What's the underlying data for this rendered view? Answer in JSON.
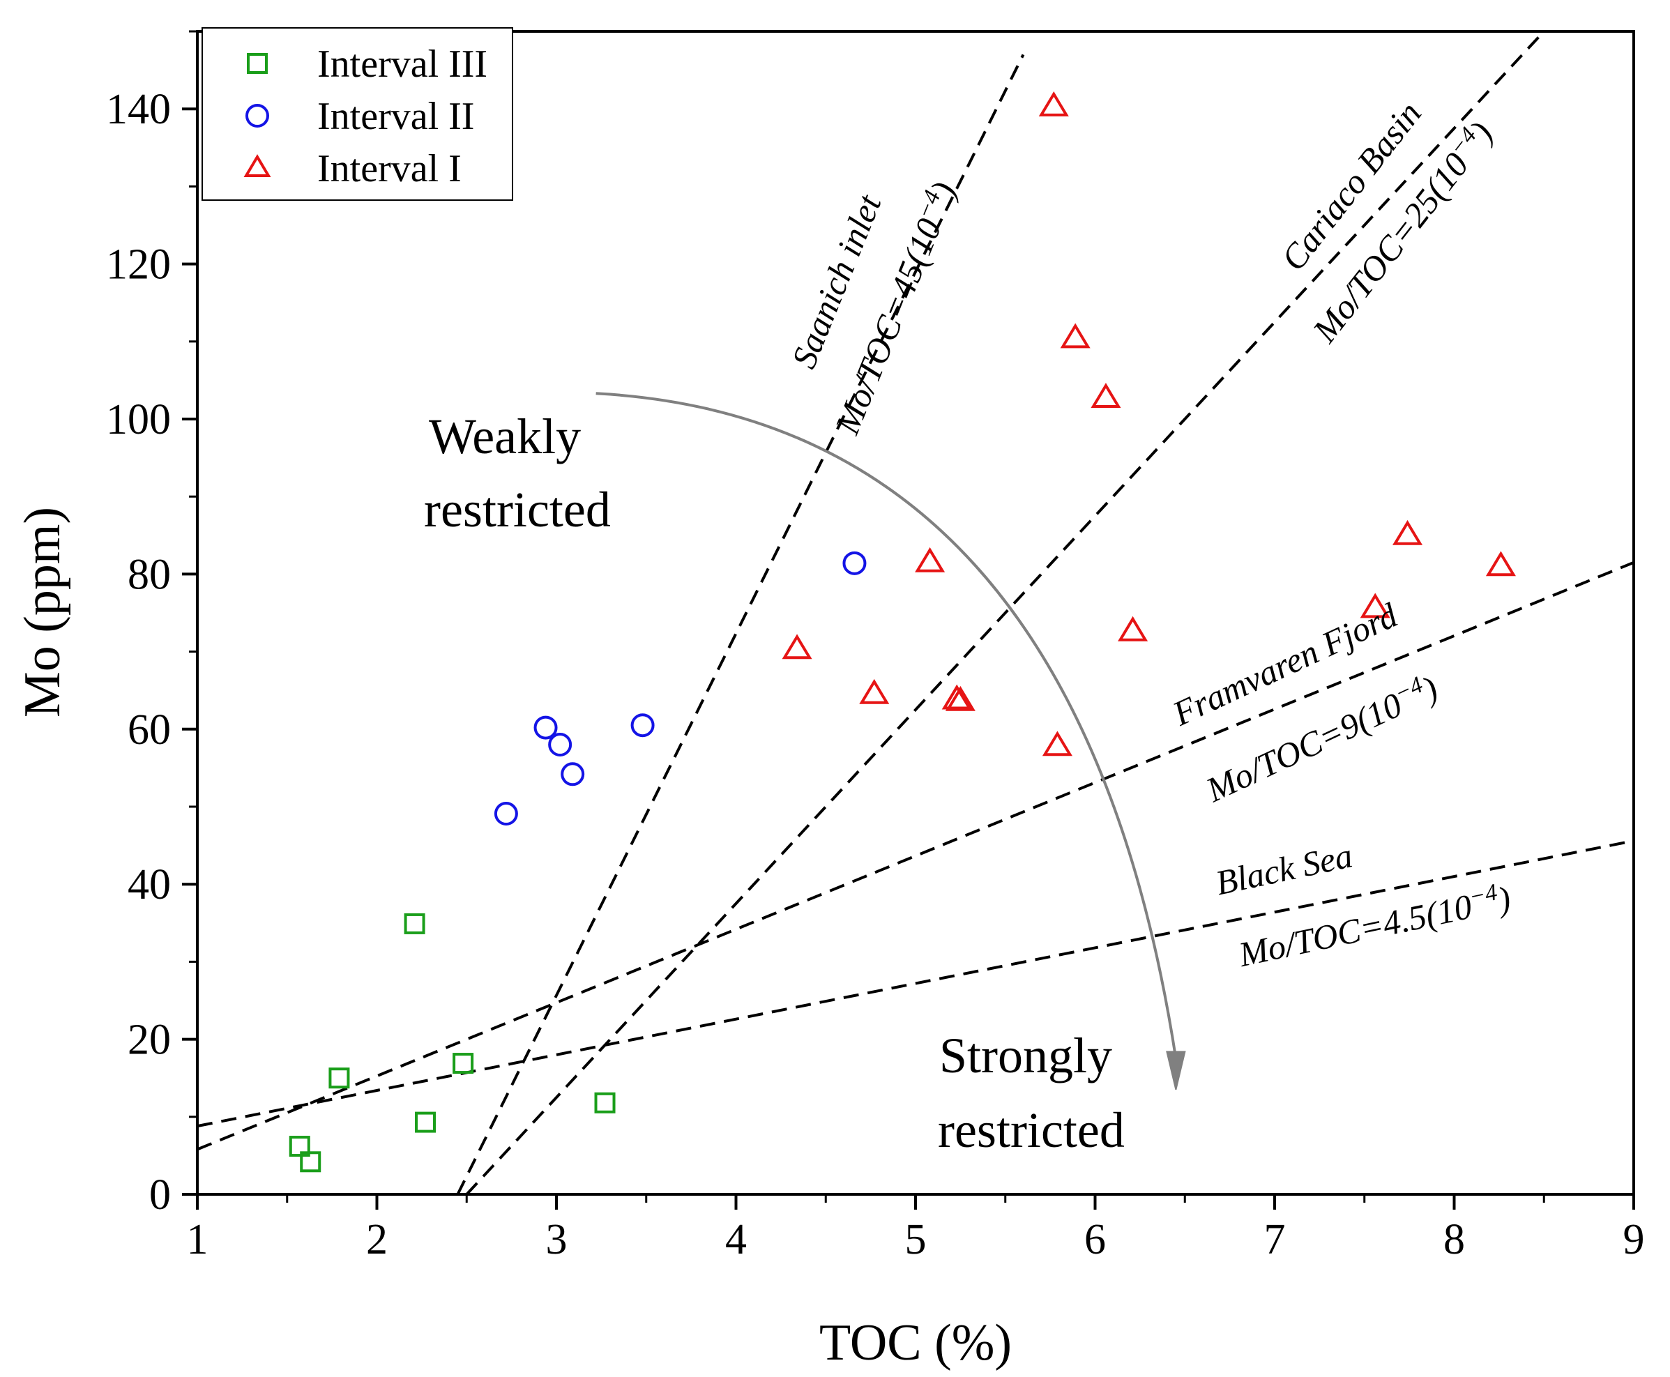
{
  "chart_data": {
    "type": "scatter",
    "xlabel": "TOC (%)",
    "ylabel": "Mo (ppm)",
    "xlim": [
      1,
      9
    ],
    "ylim": [
      0,
      150
    ],
    "xticks": [
      1,
      2,
      3,
      4,
      5,
      6,
      7,
      8,
      9
    ],
    "yticks": [
      0,
      20,
      40,
      60,
      80,
      100,
      120,
      140
    ],
    "x_tick_labels": [
      "1",
      "2",
      "3",
      "4",
      "5",
      "6",
      "7",
      "8",
      "9"
    ],
    "y_tick_labels": [
      "0",
      "20",
      "40",
      "60",
      "80",
      "100",
      "120",
      "140"
    ],
    "legend_position": "top-left",
    "series": [
      {
        "name": "Interval III",
        "marker": "square",
        "color": "#1a9e1a",
        "points": [
          {
            "x": 1.57,
            "y": 6.2
          },
          {
            "x": 1.63,
            "y": 4.2
          },
          {
            "x": 1.79,
            "y": 15.0
          },
          {
            "x": 2.21,
            "y": 34.9
          },
          {
            "x": 2.27,
            "y": 9.3
          },
          {
            "x": 2.48,
            "y": 16.9
          },
          {
            "x": 3.27,
            "y": 11.8
          }
        ]
      },
      {
        "name": "Interval II",
        "marker": "circle",
        "color": "#1414e6",
        "points": [
          {
            "x": 2.72,
            "y": 49.1
          },
          {
            "x": 2.94,
            "y": 60.2
          },
          {
            "x": 3.02,
            "y": 58.0
          },
          {
            "x": 3.09,
            "y": 54.2
          },
          {
            "x": 3.48,
            "y": 60.5
          },
          {
            "x": 4.66,
            "y": 81.4
          }
        ]
      },
      {
        "name": "Interval I",
        "marker": "triangle",
        "color": "#e61414",
        "points": [
          {
            "x": 4.34,
            "y": 70.3
          },
          {
            "x": 4.77,
            "y": 64.5
          },
          {
            "x": 5.08,
            "y": 81.5
          },
          {
            "x": 5.23,
            "y": 63.8
          },
          {
            "x": 5.25,
            "y": 63.6
          },
          {
            "x": 5.77,
            "y": 140.3
          },
          {
            "x": 5.79,
            "y": 57.8
          },
          {
            "x": 5.89,
            "y": 110.4
          },
          {
            "x": 6.06,
            "y": 102.7
          },
          {
            "x": 6.21,
            "y": 72.6
          },
          {
            "x": 7.56,
            "y": 75.6
          },
          {
            "x": 7.74,
            "y": 85.0
          },
          {
            "x": 8.26,
            "y": 81.0
          }
        ]
      }
    ],
    "reference_lines": [
      {
        "name": "Saanich inlet",
        "ratio_label": "Mo/TOC=45(10",
        "exponent": "−4",
        "from": [
          2.45,
          0
        ],
        "to": [
          5.6,
          147
        ]
      },
      {
        "name": "Cariaco Basin",
        "ratio_label": "Mo/TOC=25(10",
        "exponent": "−4",
        "from": [
          2.5,
          0
        ],
        "to": [
          8.5,
          150
        ]
      },
      {
        "name": "Framvaren Fjord",
        "ratio_label": "Mo/TOC=9(10",
        "exponent": "−4",
        "from": [
          1.0,
          5.8
        ],
        "to": [
          9.0,
          81.5
        ]
      },
      {
        "name": "Black Sea",
        "ratio_label": "Mo/TOC=4.5(10",
        "exponent": "−4",
        "from": [
          1.0,
          8.8
        ],
        "to": [
          9.0,
          45.6
        ]
      }
    ],
    "annotations": {
      "weakly_line1": "Weakly",
      "weakly_line2": "restricted",
      "strongly_line1": "Strongly",
      "strongly_line2": "restricted"
    },
    "arrow": {
      "start": [
        3.22,
        103.3
      ],
      "control": [
        5.9,
        100
      ],
      "end": [
        6.45,
        17.5
      ],
      "tip": [
        6.45,
        13.5
      ],
      "color": "#808080"
    }
  }
}
